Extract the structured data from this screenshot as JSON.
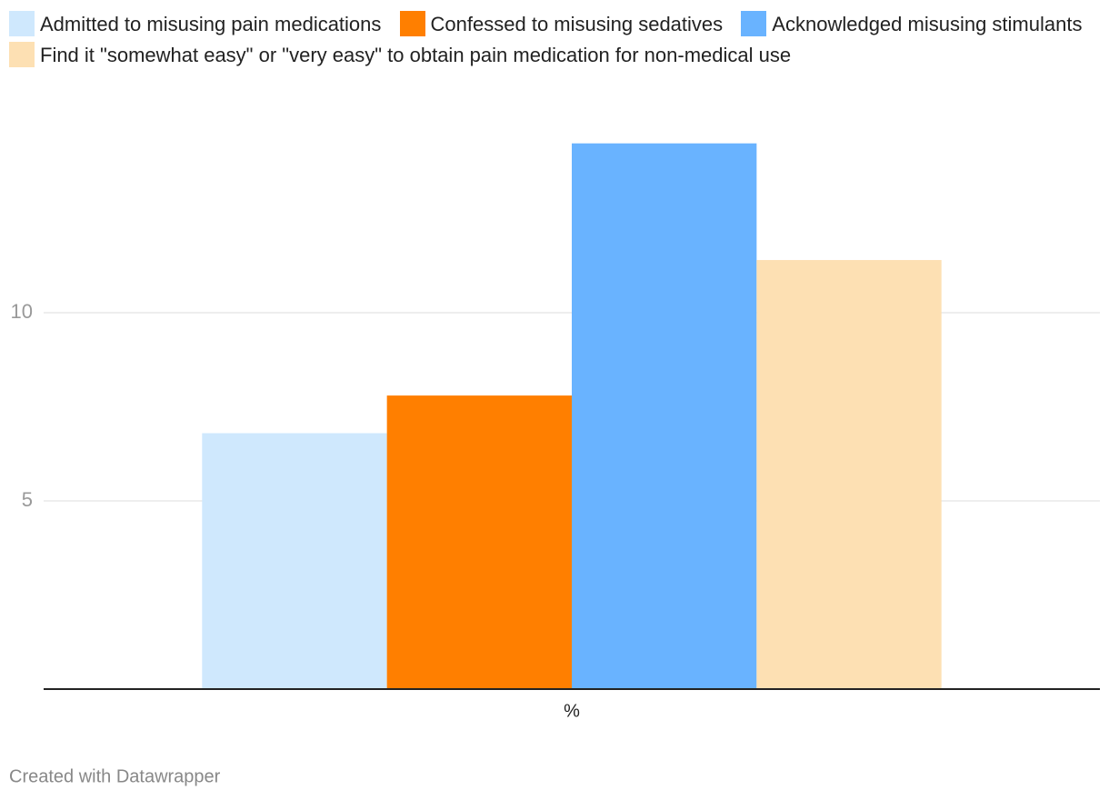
{
  "chart_data": {
    "type": "bar",
    "categories": [
      "%"
    ],
    "series": [
      {
        "name": "Admitted to misusing pain medications",
        "color": "#cfe8fd",
        "values": [
          6.8
        ]
      },
      {
        "name": "Confessed to misusing sedatives",
        "color": "#ff7f00",
        "values": [
          7.8
        ]
      },
      {
        "name": "Acknowledged misusing stimulants",
        "color": "#69b3ff",
        "values": [
          14.5
        ]
      },
      {
        "name": "Find it \"somewhat easy\" or \"very easy\" to obtain pain medication for non-medical use",
        "color": "#fde0b3",
        "values": [
          11.4
        ]
      }
    ],
    "ylim": [
      0,
      15
    ],
    "yticks": [
      5,
      10
    ],
    "grid": true,
    "credit": "Created with Datawrapper"
  }
}
